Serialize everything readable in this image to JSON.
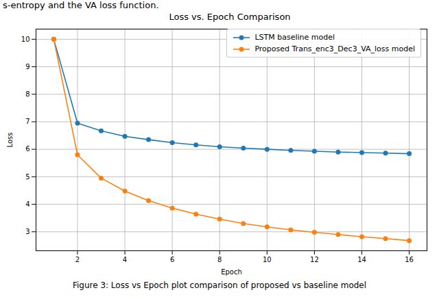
{
  "chart_data": {
    "type": "line",
    "title": "Loss vs. Epoch Comparison",
    "annotations": [
      "s-entropy and the VA loss function.",
      "Figure 3: Loss vs Epoch plot comparison of proposed vs baseline model"
    ],
    "x_label": "Epoch",
    "y_label": "Loss",
    "x": [
      1,
      2,
      3,
      4,
      5,
      6,
      7,
      8,
      9,
      10,
      11,
      12,
      13,
      14,
      15,
      16
    ],
    "series": [
      {
        "name": "LSTM baseline model",
        "color": "#1f77b4",
        "marker": "o",
        "values": [
          10.0,
          6.95,
          6.67,
          6.47,
          6.35,
          6.24,
          6.16,
          6.09,
          6.04,
          6.0,
          5.96,
          5.93,
          5.9,
          5.88,
          5.86,
          5.84
        ]
      },
      {
        "name": "Proposed Trans_enc3_Dec3_VA_loss model",
        "color": "#ff7f0e",
        "marker": "o",
        "values": [
          10.0,
          5.8,
          4.95,
          4.48,
          4.13,
          3.86,
          3.64,
          3.46,
          3.3,
          3.18,
          3.07,
          2.98,
          2.9,
          2.82,
          2.75,
          2.68
        ]
      }
    ],
    "xlim": [
      0.25,
      16.75
    ],
    "xticks": [
      2,
      4,
      6,
      8,
      10,
      12,
      14,
      16
    ],
    "ylim": [
      2.31,
      10.37
    ],
    "yticks": [
      3,
      4,
      5,
      6,
      7,
      8,
      9,
      10
    ],
    "grid": true,
    "legend": "upper right"
  }
}
